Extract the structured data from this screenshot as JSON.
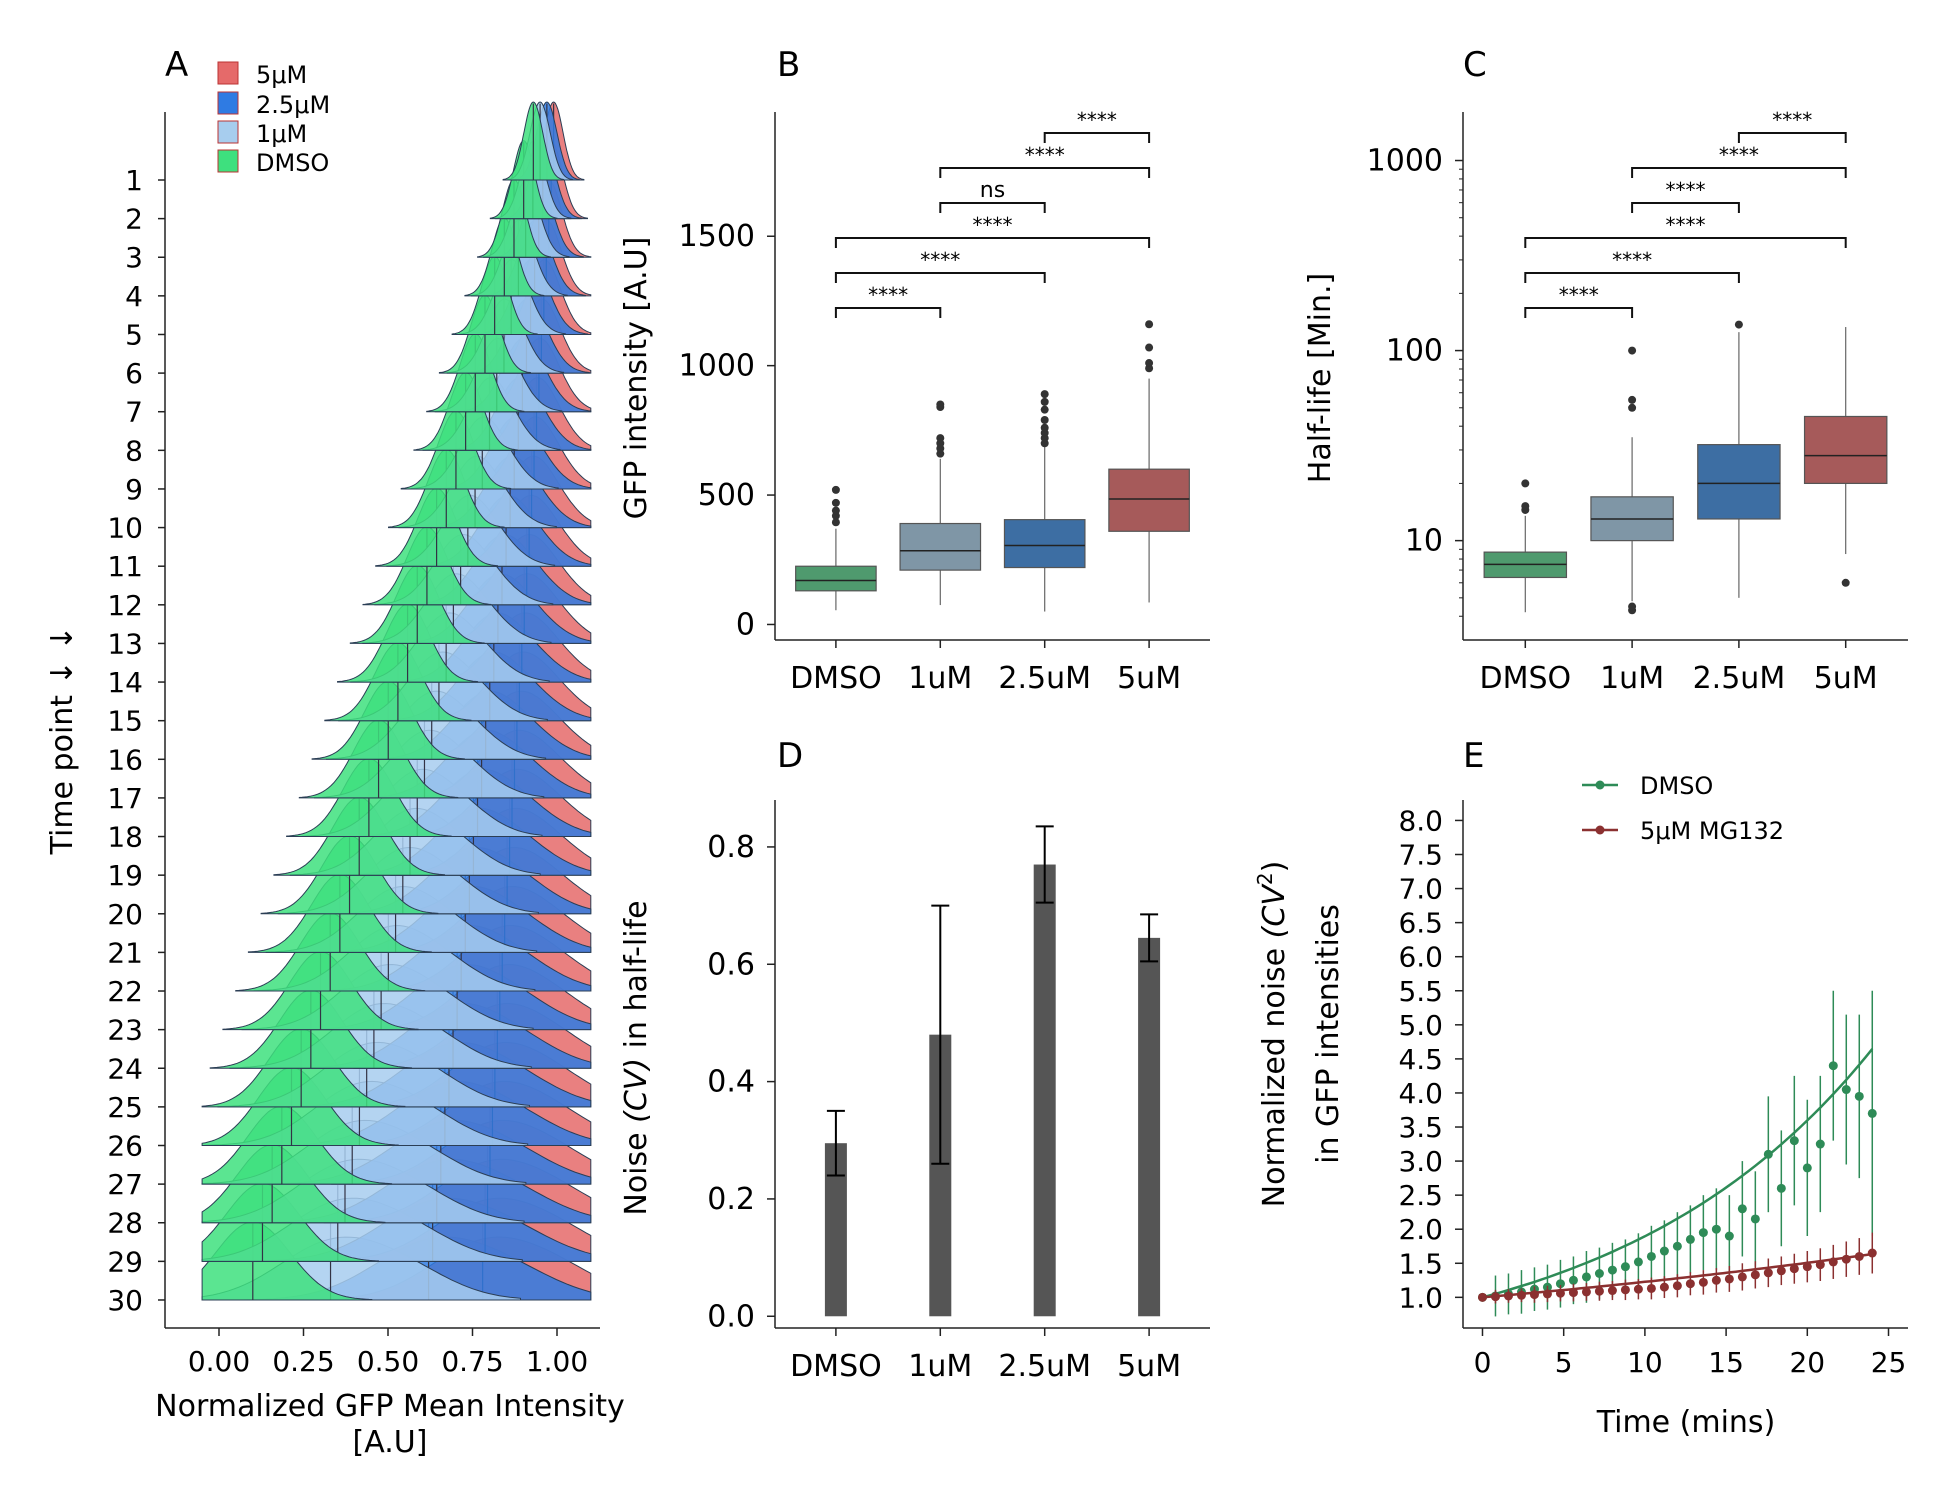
{
  "colors": {
    "dmso": "#3ee07e",
    "c1": "#a7cdee",
    "c25": "#2f7be3",
    "c5": "#e56a6a",
    "boxDmso": "#4f9a6e",
    "box1": "#7f96a6",
    "box25": "#3d6ea3",
    "box5": "#a65a5a",
    "bar": "#555555",
    "lineDmso": "#2e8b57",
    "line5": "#8b3030"
  },
  "chart_data": [
    {
      "panel": "A",
      "type": "area",
      "xlabel": "Normalized GFP Mean Intensity",
      "xlabel2": "[A.U]",
      "ylabel": "Time point",
      "ylabel_arrows": "↓ ↓",
      "xticks": [
        "0.00",
        "0.25",
        "0.50",
        "0.75",
        "1.00"
      ],
      "xlim": [
        -0.05,
        1.1
      ],
      "timepoints": [
        "1",
        "2",
        "3",
        "4",
        "5",
        "6",
        "7",
        "8",
        "9",
        "10",
        "11",
        "12",
        "13",
        "14",
        "15",
        "16",
        "17",
        "18",
        "19",
        "20",
        "21",
        "22",
        "23",
        "24",
        "25",
        "26",
        "27",
        "28",
        "29",
        "30"
      ],
      "legend": [
        "5μM",
        "2.5μM",
        "1μM",
        "DMSO"
      ],
      "peak_start": {
        "DMSO": 0.93,
        "1uM": 0.95,
        "2.5uM": 0.97,
        "5uM": 0.99
      },
      "peak_end": {
        "DMSO": 0.1,
        "1uM": 0.33,
        "2.5uM": 0.62,
        "5uM": 0.78
      }
    },
    {
      "panel": "B",
      "type": "box",
      "categories": [
        "DMSO",
        "1uM",
        "2.5uM",
        "5uM"
      ],
      "ylabel": "GFP intensity [A.U]",
      "yticks": [
        0,
        500,
        1000,
        1500
      ],
      "ylim": [
        -60,
        1980
      ],
      "boxes": [
        {
          "q1": 130,
          "median": 170,
          "q3": 225,
          "lo": 55,
          "hi": 370,
          "outliers": [
            395,
            420,
            440,
            470,
            520
          ]
        },
        {
          "q1": 210,
          "median": 285,
          "q3": 390,
          "lo": 75,
          "hi": 640,
          "outliers": [
            660,
            680,
            700,
            720,
            840,
            850
          ]
        },
        {
          "q1": 220,
          "median": 305,
          "q3": 405,
          "lo": 50,
          "hi": 690,
          "outliers": [
            700,
            720,
            740,
            760,
            790,
            830,
            860,
            890
          ]
        },
        {
          "q1": 360,
          "median": 485,
          "q3": 600,
          "lo": 85,
          "hi": 950,
          "outliers": [
            990,
            1010,
            1070,
            1160
          ]
        }
      ],
      "significance": [
        {
          "a": 0,
          "b": 1,
          "label": "****"
        },
        {
          "a": 0,
          "b": 2,
          "label": "****"
        },
        {
          "a": 0,
          "b": 3,
          "label": "****"
        },
        {
          "a": 1,
          "b": 2,
          "label": "ns"
        },
        {
          "a": 1,
          "b": 3,
          "label": "****"
        },
        {
          "a": 2,
          "b": 3,
          "label": "****"
        }
      ]
    },
    {
      "panel": "C",
      "type": "box",
      "scale": "log",
      "categories": [
        "DMSO",
        "1uM",
        "2.5uM",
        "5uM"
      ],
      "ylabel": "Half-life [Min.]",
      "yticks": [
        10,
        100,
        1000
      ],
      "ylim": [
        3,
        1800
      ],
      "boxes": [
        {
          "q1": 6.4,
          "median": 7.5,
          "q3": 8.7,
          "lo": 4.2,
          "hi": 13.5,
          "outliers": [
            14.5,
            15.2,
            20
          ]
        },
        {
          "q1": 10,
          "median": 13,
          "q3": 17,
          "lo": 4.8,
          "hi": 35,
          "outliers": [
            4.3,
            4.5,
            50,
            55,
            100
          ]
        },
        {
          "q1": 13,
          "median": 20,
          "q3": 32,
          "lo": 5,
          "hi": 125,
          "outliers": [
            137
          ]
        },
        {
          "q1": 20,
          "median": 28,
          "q3": 45,
          "lo": 8.5,
          "hi": 133,
          "outliers": [
            6
          ]
        }
      ],
      "significance": [
        {
          "a": 0,
          "b": 1,
          "label": "****"
        },
        {
          "a": 0,
          "b": 2,
          "label": "****"
        },
        {
          "a": 0,
          "b": 3,
          "label": "****"
        },
        {
          "a": 1,
          "b": 2,
          "label": "****"
        },
        {
          "a": 1,
          "b": 3,
          "label": "****"
        },
        {
          "a": 2,
          "b": 3,
          "label": "****"
        }
      ]
    },
    {
      "panel": "D",
      "type": "bar",
      "categories": [
        "DMSO",
        "1uM",
        "2.5uM",
        "5uM"
      ],
      "values": [
        0.295,
        0.48,
        0.77,
        0.645
      ],
      "errors": [
        0.055,
        0.22,
        0.065,
        0.04
      ],
      "ylabel_pre": "Noise",
      "ylabel_var": "(CV)",
      "ylabel_post": "in half-life",
      "yticks": [
        "0.0",
        "0.2",
        "0.4",
        "0.6",
        "0.8"
      ],
      "ylim": [
        -0.02,
        0.88
      ]
    },
    {
      "panel": "E",
      "type": "line",
      "xlabel": "Time (mins)",
      "ylabel_line1_pre": "Normalized noise",
      "ylabel_line1_var": "(CV",
      "ylabel_line1_sup": "2",
      "ylabel_line1_close": ")",
      "ylabel_line2": "in GFP intensities",
      "xticks": [
        0,
        5,
        10,
        15,
        20,
        25
      ],
      "yticks": [
        "1.0",
        "1.5",
        "2.0",
        "2.5",
        "3.0",
        "3.5",
        "4.0",
        "4.5",
        "5.0",
        "5.5",
        "6.0",
        "6.5",
        "7.0",
        "7.5",
        "8.0"
      ],
      "xlim": [
        -1.2,
        26.2
      ],
      "ylim": [
        0.55,
        8.3
      ],
      "series": [
        {
          "name": "DMSO",
          "x": [
            0,
            0.8,
            1.6,
            2.4,
            3.2,
            4.0,
            4.8,
            5.6,
            6.4,
            7.2,
            8.0,
            8.8,
            9.6,
            10.4,
            11.2,
            12.0,
            12.8,
            13.6,
            14.4,
            15.2,
            16.0,
            16.8,
            17.6,
            18.4,
            19.2,
            20.0,
            20.8,
            21.6,
            22.4,
            23.2,
            24.0
          ],
          "y": [
            1.0,
            1.02,
            1.05,
            1.08,
            1.12,
            1.15,
            1.2,
            1.25,
            1.3,
            1.35,
            1.4,
            1.45,
            1.52,
            1.6,
            1.68,
            1.75,
            1.85,
            1.95,
            2.0,
            1.9,
            2.3,
            2.15,
            3.1,
            2.6,
            3.3,
            2.9,
            3.25,
            4.4,
            4.05,
            3.95,
            3.7
          ],
          "err": [
            0.05,
            0.3,
            0.3,
            0.32,
            0.32,
            0.33,
            0.35,
            0.35,
            0.38,
            0.38,
            0.4,
            0.4,
            0.42,
            0.45,
            0.45,
            0.5,
            0.5,
            0.55,
            0.6,
            0.6,
            0.7,
            0.7,
            0.85,
            0.85,
            0.95,
            1.0,
            1.0,
            1.1,
            1.1,
            1.2,
            1.8
          ],
          "fit": {
            "a": 1.0,
            "k": 0.064
          }
        },
        {
          "name": "5μM MG132",
          "x": [
            0,
            0.8,
            1.6,
            2.4,
            3.2,
            4.0,
            4.8,
            5.6,
            6.4,
            7.2,
            8.0,
            8.8,
            9.6,
            10.4,
            11.2,
            12.0,
            12.8,
            13.6,
            14.4,
            15.2,
            16.0,
            16.8,
            17.6,
            18.4,
            19.2,
            20.0,
            20.8,
            21.6,
            22.4,
            23.2,
            24.0
          ],
          "y": [
            1.0,
            1.01,
            1.02,
            1.03,
            1.04,
            1.05,
            1.06,
            1.07,
            1.08,
            1.09,
            1.1,
            1.11,
            1.12,
            1.13,
            1.15,
            1.17,
            1.2,
            1.22,
            1.25,
            1.27,
            1.3,
            1.33,
            1.36,
            1.39,
            1.42,
            1.45,
            1.48,
            1.52,
            1.56,
            1.6,
            1.65
          ],
          "err": [
            0.02,
            0.1,
            0.1,
            0.1,
            0.12,
            0.12,
            0.12,
            0.13,
            0.13,
            0.14,
            0.14,
            0.15,
            0.15,
            0.16,
            0.16,
            0.17,
            0.17,
            0.18,
            0.18,
            0.19,
            0.2,
            0.2,
            0.21,
            0.21,
            0.22,
            0.23,
            0.24,
            0.25,
            0.26,
            0.27,
            0.3
          ],
          "fit": {
            "a": 1.0,
            "k": 0.0205
          }
        }
      ]
    }
  ]
}
